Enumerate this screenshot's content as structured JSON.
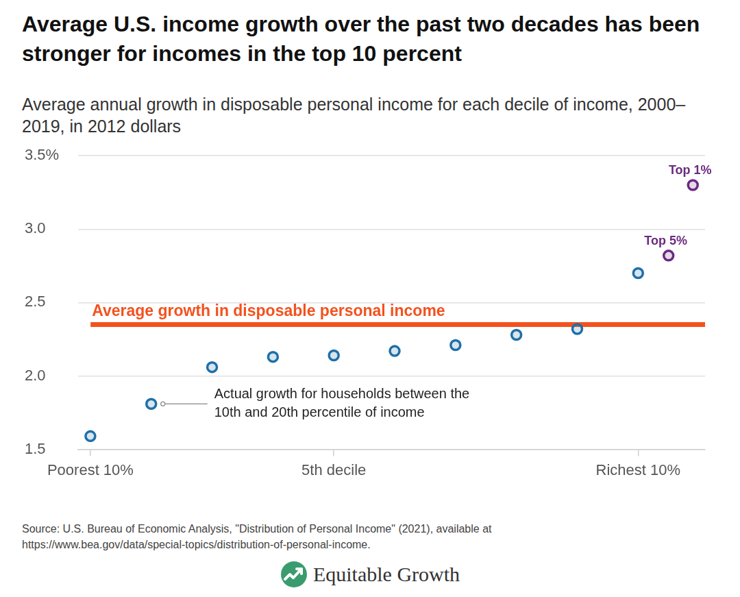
{
  "chart_data": {
    "type": "scatter",
    "title": "Average U.S. income growth over the past two decades has been stronger for incomes in the top 10 percent",
    "subtitle": "Average annual growth in disposable personal income for each decile of income, 2000–2019, in 2012 dollars",
    "x": [
      1,
      2,
      3,
      4,
      5,
      6,
      7,
      8,
      9,
      10,
      10.5,
      10.9
    ],
    "series": [
      {
        "color": "#1f6fa8",
        "marker": "circle",
        "values": [
          1.59,
          1.81,
          2.06,
          2.13,
          2.14,
          2.17,
          2.21,
          2.28,
          2.32,
          2.7,
          null,
          null
        ]
      },
      {
        "color": "#6b2a7f",
        "marker": "circle",
        "values": [
          null,
          null,
          null,
          null,
          null,
          null,
          null,
          null,
          null,
          null,
          2.82,
          3.3
        ],
        "point_labels": [
          null,
          null,
          null,
          null,
          null,
          null,
          null,
          null,
          null,
          null,
          "Top 5%",
          "Top 1%"
        ]
      }
    ],
    "xlim": [
      0.8,
      11.1
    ],
    "xticks": [
      {
        "value": 1,
        "label": "Poorest 10%"
      },
      {
        "value": 5,
        "label": "5th decile"
      },
      {
        "value": 10,
        "label": "Richest 10%"
      }
    ],
    "ylim": [
      1.5,
      3.5
    ],
    "yticks": [
      1.5,
      {
        "value": 2,
        "label": "2.0"
      },
      2.5,
      {
        "value": 3,
        "label": "3.0"
      },
      {
        "value": 3.5,
        "label": "3.5%"
      }
    ],
    "grid": "y",
    "reference_lines": [
      {
        "value": 2.35,
        "label": "Average growth in disposable personal income",
        "color": "#f4511e"
      }
    ],
    "annotations": [
      {
        "text": "Actual growth for households between the 10th and 20th percentile of income",
        "x": 2
      }
    ],
    "source": "Source: U.S. Bureau of Economic Analysis, \"Distribution of Personal Income\" (2021), available at https://www.bea.gov/data/special-topics/distribution-of-personal-income.",
    "logo": "Equitable Growth"
  }
}
